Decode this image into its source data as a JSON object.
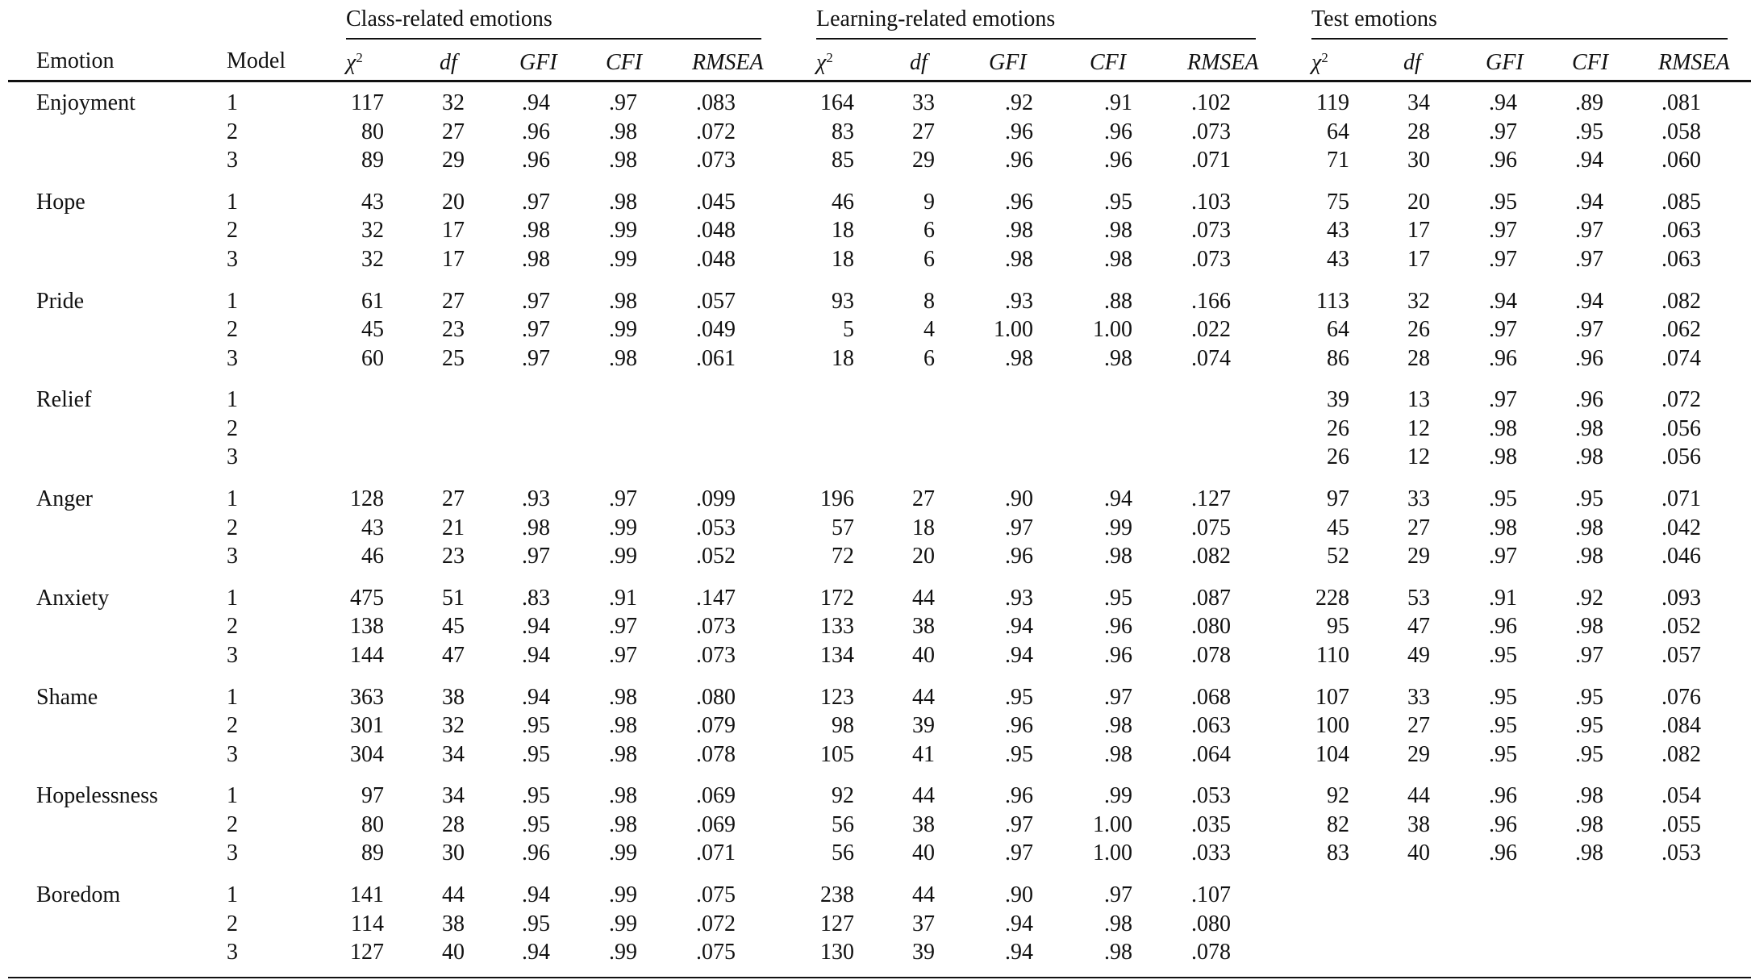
{
  "header": {
    "emotion_label": "Emotion",
    "model_label": "Model",
    "groups": [
      {
        "label": "Class-related emotions"
      },
      {
        "label": "Learning-related emotions"
      },
      {
        "label": "Test emotions"
      }
    ],
    "columns": [
      {
        "base": "χ",
        "sup": "2"
      },
      {
        "base": "df",
        "sup": ""
      },
      {
        "base": "GFI",
        "sup": ""
      },
      {
        "base": "CFI",
        "sup": ""
      },
      {
        "base": "RMSEA",
        "sup": ""
      }
    ]
  },
  "rows": [
    {
      "emotion": "Enjoyment",
      "models": [
        {
          "model": "1",
          "class": [
            "117",
            "32",
            ".94",
            ".97",
            ".083"
          ],
          "learning": [
            "164",
            "33",
            ".92",
            ".91",
            ".102"
          ],
          "test": [
            "119",
            "34",
            ".94",
            ".89",
            ".081"
          ]
        },
        {
          "model": "2",
          "class": [
            "80",
            "27",
            ".96",
            ".98",
            ".072"
          ],
          "learning": [
            "83",
            "27",
            ".96",
            ".96",
            ".073"
          ],
          "test": [
            "64",
            "28",
            ".97",
            ".95",
            ".058"
          ]
        },
        {
          "model": "3",
          "class": [
            "89",
            "29",
            ".96",
            ".98",
            ".073"
          ],
          "learning": [
            "85",
            "29",
            ".96",
            ".96",
            ".071"
          ],
          "test": [
            "71",
            "30",
            ".96",
            ".94",
            ".060"
          ]
        }
      ]
    },
    {
      "emotion": "Hope",
      "models": [
        {
          "model": "1",
          "class": [
            "43",
            "20",
            ".97",
            ".98",
            ".045"
          ],
          "learning": [
            "46",
            "9",
            ".96",
            ".95",
            ".103"
          ],
          "test": [
            "75",
            "20",
            ".95",
            ".94",
            ".085"
          ]
        },
        {
          "model": "2",
          "class": [
            "32",
            "17",
            ".98",
            ".99",
            ".048"
          ],
          "learning": [
            "18",
            "6",
            ".98",
            ".98",
            ".073"
          ],
          "test": [
            "43",
            "17",
            ".97",
            ".97",
            ".063"
          ]
        },
        {
          "model": "3",
          "class": [
            "32",
            "17",
            ".98",
            ".99",
            ".048"
          ],
          "learning": [
            "18",
            "6",
            ".98",
            ".98",
            ".073"
          ],
          "test": [
            "43",
            "17",
            ".97",
            ".97",
            ".063"
          ]
        }
      ]
    },
    {
      "emotion": "Pride",
      "models": [
        {
          "model": "1",
          "class": [
            "61",
            "27",
            ".97",
            ".98",
            ".057"
          ],
          "learning": [
            "93",
            "8",
            ".93",
            ".88",
            ".166"
          ],
          "test": [
            "113",
            "32",
            ".94",
            ".94",
            ".082"
          ]
        },
        {
          "model": "2",
          "class": [
            "45",
            "23",
            ".97",
            ".99",
            ".049"
          ],
          "learning": [
            "5",
            "4",
            "1.00",
            "1.00",
            ".022"
          ],
          "test": [
            "64",
            "26",
            ".97",
            ".97",
            ".062"
          ]
        },
        {
          "model": "3",
          "class": [
            "60",
            "25",
            ".97",
            ".98",
            ".061"
          ],
          "learning": [
            "18",
            "6",
            ".98",
            ".98",
            ".074"
          ],
          "test": [
            "86",
            "28",
            ".96",
            ".96",
            ".074"
          ]
        }
      ]
    },
    {
      "emotion": "Relief",
      "models": [
        {
          "model": "1",
          "class": null,
          "learning": null,
          "test": [
            "39",
            "13",
            ".97",
            ".96",
            ".072"
          ]
        },
        {
          "model": "2",
          "class": null,
          "learning": null,
          "test": [
            "26",
            "12",
            ".98",
            ".98",
            ".056"
          ]
        },
        {
          "model": "3",
          "class": null,
          "learning": null,
          "test": [
            "26",
            "12",
            ".98",
            ".98",
            ".056"
          ]
        }
      ]
    },
    {
      "emotion": "Anger",
      "models": [
        {
          "model": "1",
          "class": [
            "128",
            "27",
            ".93",
            ".97",
            ".099"
          ],
          "learning": [
            "196",
            "27",
            ".90",
            ".94",
            ".127"
          ],
          "test": [
            "97",
            "33",
            ".95",
            ".95",
            ".071"
          ]
        },
        {
          "model": "2",
          "class": [
            "43",
            "21",
            ".98",
            ".99",
            ".053"
          ],
          "learning": [
            "57",
            "18",
            ".97",
            ".99",
            ".075"
          ],
          "test": [
            "45",
            "27",
            ".98",
            ".98",
            ".042"
          ]
        },
        {
          "model": "3",
          "class": [
            "46",
            "23",
            ".97",
            ".99",
            ".052"
          ],
          "learning": [
            "72",
            "20",
            ".96",
            ".98",
            ".082"
          ],
          "test": [
            "52",
            "29",
            ".97",
            ".98",
            ".046"
          ]
        }
      ]
    },
    {
      "emotion": "Anxiety",
      "models": [
        {
          "model": "1",
          "class": [
            "475",
            "51",
            ".83",
            ".91",
            ".147"
          ],
          "learning": [
            "172",
            "44",
            ".93",
            ".95",
            ".087"
          ],
          "test": [
            "228",
            "53",
            ".91",
            ".92",
            ".093"
          ]
        },
        {
          "model": "2",
          "class": [
            "138",
            "45",
            ".94",
            ".97",
            ".073"
          ],
          "learning": [
            "133",
            "38",
            ".94",
            ".96",
            ".080"
          ],
          "test": [
            "95",
            "47",
            ".96",
            ".98",
            ".052"
          ]
        },
        {
          "model": "3",
          "class": [
            "144",
            "47",
            ".94",
            ".97",
            ".073"
          ],
          "learning": [
            "134",
            "40",
            ".94",
            ".96",
            ".078"
          ],
          "test": [
            "110",
            "49",
            ".95",
            ".97",
            ".057"
          ]
        }
      ]
    },
    {
      "emotion": "Shame",
      "models": [
        {
          "model": "1",
          "class": [
            "363",
            "38",
            ".94",
            ".98",
            ".080"
          ],
          "learning": [
            "123",
            "44",
            ".95",
            ".97",
            ".068"
          ],
          "test": [
            "107",
            "33",
            ".95",
            ".95",
            ".076"
          ]
        },
        {
          "model": "2",
          "class": [
            "301",
            "32",
            ".95",
            ".98",
            ".079"
          ],
          "learning": [
            "98",
            "39",
            ".96",
            ".98",
            ".063"
          ],
          "test": [
            "100",
            "27",
            ".95",
            ".95",
            ".084"
          ]
        },
        {
          "model": "3",
          "class": [
            "304",
            "34",
            ".95",
            ".98",
            ".078"
          ],
          "learning": [
            "105",
            "41",
            ".95",
            ".98",
            ".064"
          ],
          "test": [
            "104",
            "29",
            ".95",
            ".95",
            ".082"
          ]
        }
      ]
    },
    {
      "emotion": "Hopelessness",
      "models": [
        {
          "model": "1",
          "class": [
            "97",
            "34",
            ".95",
            ".98",
            ".069"
          ],
          "learning": [
            "92",
            "44",
            ".96",
            ".99",
            ".053"
          ],
          "test": [
            "92",
            "44",
            ".96",
            ".98",
            ".054"
          ]
        },
        {
          "model": "2",
          "class": [
            "80",
            "28",
            ".95",
            ".98",
            ".069"
          ],
          "learning": [
            "56",
            "38",
            ".97",
            "1.00",
            ".035"
          ],
          "test": [
            "82",
            "38",
            ".96",
            ".98",
            ".055"
          ]
        },
        {
          "model": "3",
          "class": [
            "89",
            "30",
            ".96",
            ".99",
            ".071"
          ],
          "learning": [
            "56",
            "40",
            ".97",
            "1.00",
            ".033"
          ],
          "test": [
            "83",
            "40",
            ".96",
            ".98",
            ".053"
          ]
        }
      ]
    },
    {
      "emotion": "Boredom",
      "models": [
        {
          "model": "1",
          "class": [
            "141",
            "44",
            ".94",
            ".99",
            ".075"
          ],
          "learning": [
            "238",
            "44",
            ".90",
            ".97",
            ".107"
          ],
          "test": null
        },
        {
          "model": "2",
          "class": [
            "114",
            "38",
            ".95",
            ".99",
            ".072"
          ],
          "learning": [
            "127",
            "37",
            ".94",
            ".98",
            ".080"
          ],
          "test": null
        },
        {
          "model": "3",
          "class": [
            "127",
            "40",
            ".94",
            ".99",
            ".075"
          ],
          "learning": [
            "130",
            "39",
            ".94",
            ".98",
            ".078"
          ],
          "test": null
        }
      ]
    }
  ]
}
